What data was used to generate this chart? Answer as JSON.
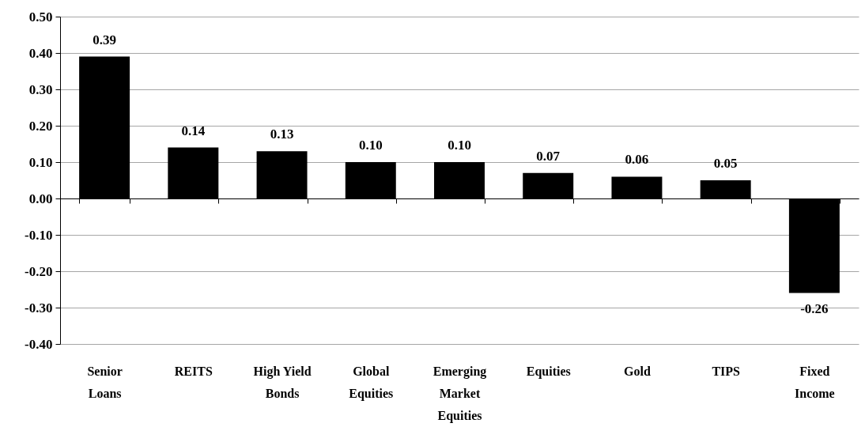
{
  "chart_data": {
    "type": "bar",
    "categories": [
      "Senior Loans",
      "REITS",
      "High Yield Bonds",
      "Global Equities",
      "Emerging Market Equities",
      "Equities",
      "Gold",
      "TIPS",
      "Fixed Income"
    ],
    "values": [
      0.39,
      0.14,
      0.13,
      0.1,
      0.1,
      0.07,
      0.06,
      0.05,
      -0.26
    ],
    "value_labels": [
      "0.39",
      "0.14",
      "0.13",
      "0.10",
      "0.10",
      "0.07",
      "0.06",
      "0.05",
      "-0.26"
    ],
    "color": "#000000",
    "ylim": [
      -0.4,
      0.5
    ],
    "yticks": [
      {
        "value": -0.4,
        "label": "-0.40"
      },
      {
        "value": -0.3,
        "label": "-0.30"
      },
      {
        "value": -0.2,
        "label": "-0.20"
      },
      {
        "value": -0.1,
        "label": "-0.10"
      },
      {
        "value": 0,
        "label": "0.00"
      },
      {
        "value": 0.1,
        "label": "0.10"
      },
      {
        "value": 0.2,
        "label": "0.20"
      },
      {
        "value": 0.3,
        "label": "0.30"
      },
      {
        "value": 0.4,
        "label": "0.40"
      },
      {
        "value": 0.5,
        "label": "0.50"
      }
    ],
    "grid": "y"
  }
}
